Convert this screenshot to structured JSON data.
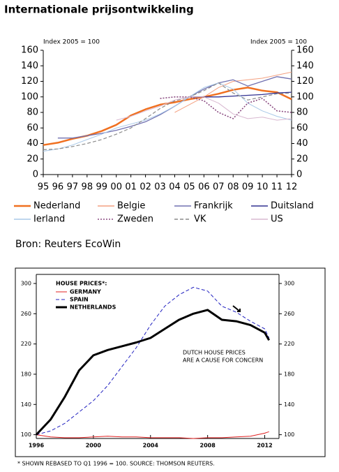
{
  "chart_data": [
    {
      "type": "line",
      "title": "Internationale prijsontwikkeling",
      "ylabel": "Index 2005 = 100",
      "y2label": "Index 2005 = 100",
      "categories": [
        "95",
        "96",
        "97",
        "98",
        "99",
        "00",
        "01",
        "02",
        "03",
        "04",
        "05",
        "06",
        "07",
        "08",
        "09",
        "10",
        "11",
        "12"
      ],
      "ylim": [
        0,
        160
      ],
      "yticks": [
        0,
        20,
        40,
        60,
        80,
        100,
        120,
        140,
        160
      ],
      "series": [
        {
          "name": "Nederland",
          "color": "#f07020",
          "dash": "solid",
          "linewidth": 2.5,
          "values": [
            38,
            41,
            46,
            50,
            56,
            64,
            76,
            84,
            90,
            93,
            97,
            100,
            104,
            109,
            112,
            108,
            106,
            97
          ]
        },
        {
          "name": "Belgie",
          "color": "#f4a080",
          "dash": "solid",
          "linewidth": 1,
          "values": [
            null,
            null,
            null,
            null,
            null,
            null,
            null,
            null,
            null,
            80,
            90,
            100,
            112,
            120,
            122,
            124,
            128,
            132
          ]
        },
        {
          "name": "Frankrijk",
          "color": "#7070b0",
          "dash": "solid",
          "linewidth": 1.3,
          "values": [
            null,
            47,
            47,
            50,
            53,
            57,
            62,
            68,
            77,
            88,
            100,
            110,
            118,
            122,
            114,
            120,
            126,
            123
          ]
        },
        {
          "name": "Duitsland",
          "color": "#303090",
          "dash": "solid",
          "linewidth": 1.3,
          "values": [
            null,
            null,
            null,
            null,
            null,
            null,
            null,
            null,
            null,
            null,
            100,
            100,
            100,
            101,
            102,
            103,
            105,
            106
          ]
        },
        {
          "name": "Ierland",
          "color": "#a8c8e8",
          "dash": "solid",
          "linewidth": 1,
          "values": [
            30,
            33,
            38,
            45,
            52,
            60,
            65,
            70,
            78,
            88,
            100,
            112,
            118,
            110,
            92,
            82,
            75,
            70
          ]
        },
        {
          "name": "Zweden",
          "color": "#8a4a80",
          "dash": "dotted",
          "linewidth": 1.6,
          "values": [
            null,
            null,
            null,
            null,
            null,
            null,
            null,
            null,
            98,
            100,
            100,
            95,
            80,
            72,
            92,
            98,
            82,
            80
          ]
        },
        {
          "name": "VK",
          "color": "#8a8a8a",
          "dash": "dashed",
          "linewidth": 1.2,
          "values": [
            32,
            33,
            36,
            40,
            45,
            52,
            60,
            72,
            85,
            95,
            100,
            108,
            118,
            105,
            96,
            100,
            104,
            105
          ]
        },
        {
          "name": "US",
          "color": "#d8b8d0",
          "dash": "solid",
          "linewidth": 1,
          "values": [
            null,
            null,
            null,
            null,
            null,
            70,
            75,
            82,
            88,
            96,
            100,
            100,
            92,
            78,
            72,
            74,
            70,
            72
          ]
        }
      ],
      "source": "Bron: Reuters EcoWin"
    },
    {
      "type": "line",
      "legend_title": "HOUSE PRICES*:",
      "x": [
        1996,
        1997,
        1998,
        1999,
        2000,
        2001,
        2002,
        2003,
        2004,
        2005,
        2006,
        2007,
        2008,
        2009,
        2010,
        2011,
        2012,
        2012.3
      ],
      "xlim": [
        1996,
        2013
      ],
      "xticks": [
        1996,
        2000,
        2004,
        2008,
        2012
      ],
      "ylim": [
        95,
        312
      ],
      "yticks": [
        100,
        140,
        180,
        220,
        260,
        300
      ],
      "series": [
        {
          "name": "GERMANY",
          "color": "#e02020",
          "dash": "solid",
          "linewidth": 1,
          "values": [
            100,
            97,
            96,
            96,
            97,
            98,
            97,
            97,
            96,
            96,
            96,
            95,
            96,
            96,
            97,
            98,
            102,
            104
          ]
        },
        {
          "name": "SPAIN",
          "color": "#2020c0",
          "dash": "dashed",
          "linewidth": 1,
          "values": [
            100,
            105,
            115,
            130,
            145,
            165,
            190,
            215,
            245,
            270,
            285,
            295,
            290,
            270,
            262,
            250,
            240,
            228
          ]
        },
        {
          "name": "NETHERLANDS",
          "color": "#000000",
          "dash": "solid",
          "linewidth": 3,
          "values": [
            100,
            120,
            150,
            185,
            205,
            212,
            217,
            222,
            228,
            240,
            252,
            260,
            265,
            252,
            250,
            245,
            235,
            225
          ]
        }
      ],
      "annotation": [
        "DUTCH HOUSE PRICES",
        "ARE A CAUSE FOR CONCERN"
      ],
      "footnote": "* SHOWN REBASED TO Q1 1996 = 100. SOURCE: THOMSON REUTERS."
    }
  ]
}
